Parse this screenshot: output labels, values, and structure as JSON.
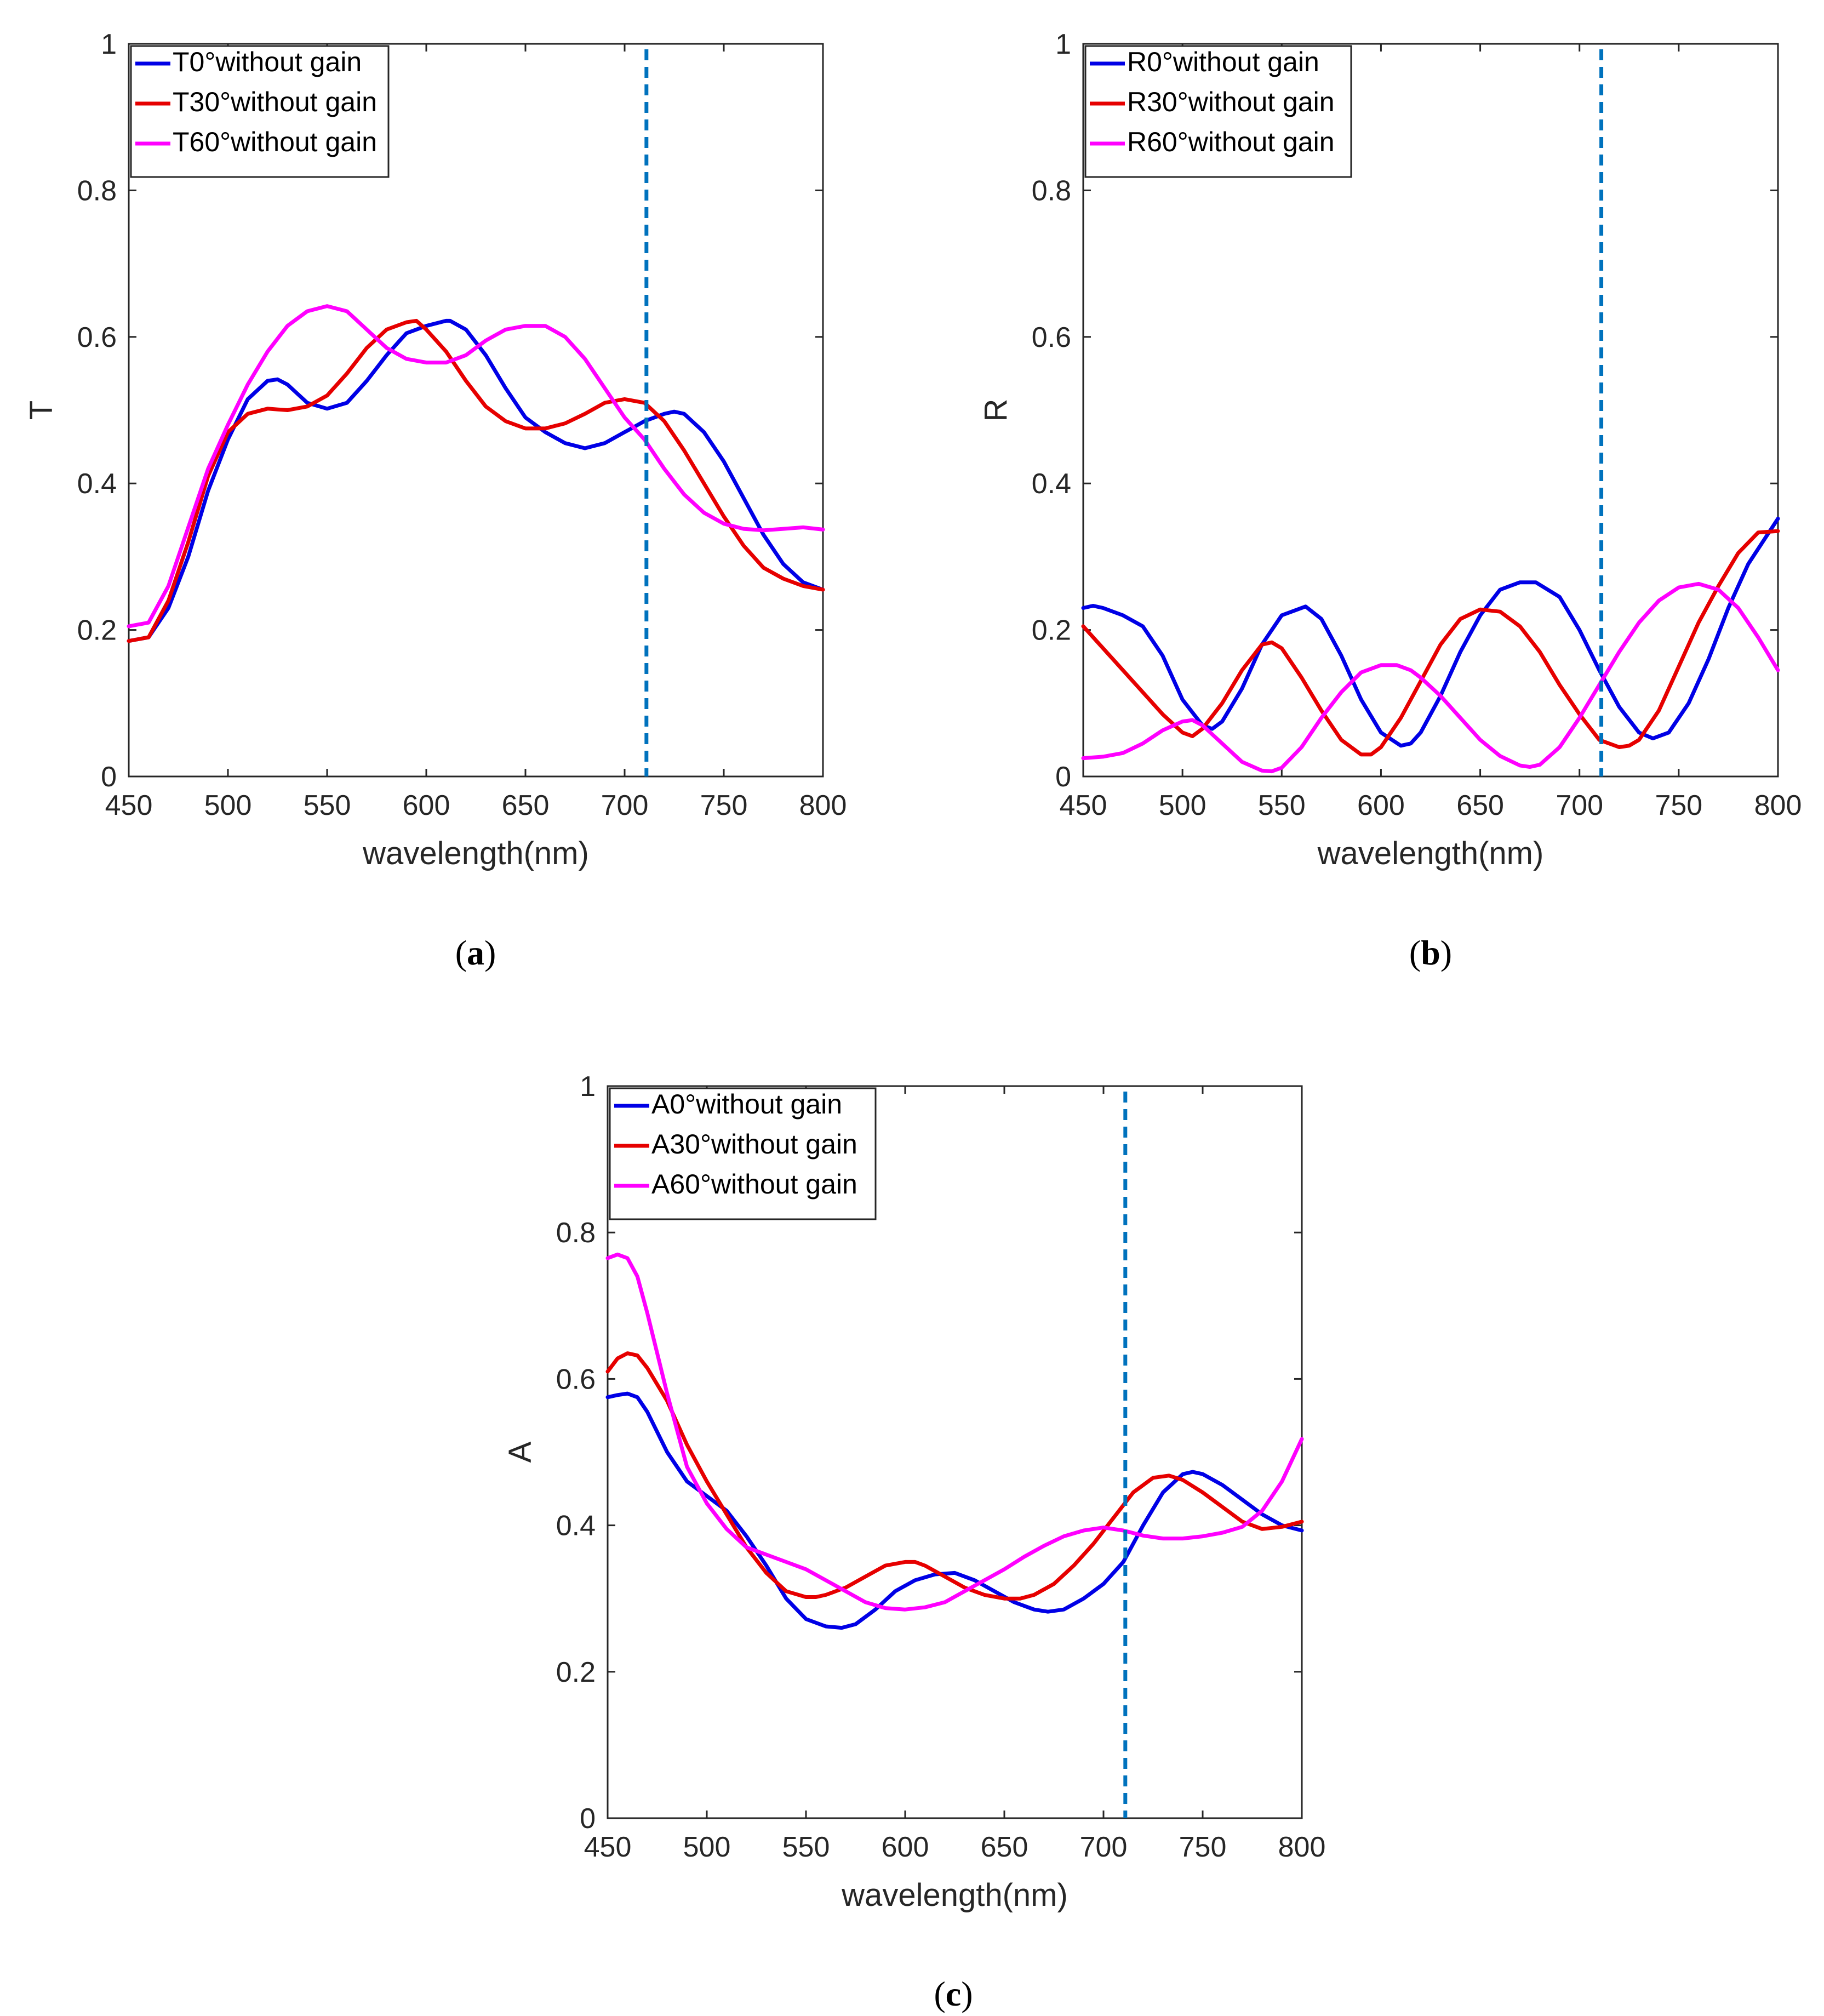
{
  "chart_data": [
    {
      "type": "line",
      "id": "a",
      "panel_label": "a",
      "xlabel": "wavelength(nm)",
      "ylabel": "T",
      "xlim": [
        450,
        800
      ],
      "ylim": [
        0,
        1
      ],
      "xticks": [
        450,
        500,
        550,
        600,
        650,
        700,
        750,
        800
      ],
      "yticks": [
        0,
        0.2,
        0.4,
        0.6,
        0.8,
        1
      ],
      "ytick_labels": [
        "0",
        "0.2",
        "0.4",
        "0.6",
        "0.8",
        "1"
      ],
      "legend_location": "top-left",
      "dashed_line_x": 711,
      "series": [
        {
          "name": "T0°without gain",
          "color": "#0000e6",
          "x": [
            450,
            460,
            470,
            480,
            490,
            500,
            510,
            520,
            525,
            530,
            540,
            550,
            560,
            570,
            580,
            590,
            600,
            610,
            612,
            620,
            630,
            640,
            650,
            660,
            670,
            680,
            690,
            700,
            710,
            720,
            725,
            730,
            740,
            750,
            760,
            770,
            780,
            790,
            800
          ],
          "y": [
            0.185,
            0.19,
            0.23,
            0.3,
            0.39,
            0.46,
            0.515,
            0.54,
            0.542,
            0.535,
            0.51,
            0.502,
            0.51,
            0.54,
            0.575,
            0.605,
            0.615,
            0.622,
            0.622,
            0.61,
            0.575,
            0.53,
            0.49,
            0.47,
            0.455,
            0.448,
            0.455,
            0.47,
            0.485,
            0.495,
            0.498,
            0.495,
            0.47,
            0.43,
            0.38,
            0.33,
            0.29,
            0.265,
            0.255
          ]
        },
        {
          "name": "T30°without gain",
          "color": "#e60000",
          "x": [
            450,
            460,
            470,
            480,
            490,
            500,
            510,
            520,
            530,
            540,
            550,
            560,
            570,
            580,
            590,
            595,
            600,
            610,
            620,
            630,
            640,
            650,
            660,
            670,
            680,
            690,
            700,
            710,
            720,
            730,
            740,
            750,
            760,
            770,
            780,
            790,
            800
          ],
          "y": [
            0.185,
            0.19,
            0.24,
            0.32,
            0.41,
            0.47,
            0.495,
            0.502,
            0.5,
            0.505,
            0.52,
            0.55,
            0.585,
            0.61,
            0.62,
            0.622,
            0.61,
            0.58,
            0.54,
            0.505,
            0.485,
            0.475,
            0.475,
            0.482,
            0.495,
            0.51,
            0.515,
            0.51,
            0.485,
            0.445,
            0.4,
            0.355,
            0.315,
            0.285,
            0.27,
            0.26,
            0.255
          ]
        },
        {
          "name": "T60°without gain",
          "color": "#ff00ff",
          "x": [
            450,
            460,
            470,
            480,
            490,
            500,
            510,
            520,
            530,
            540,
            550,
            560,
            570,
            580,
            590,
            600,
            610,
            620,
            630,
            640,
            650,
            660,
            670,
            680,
            690,
            700,
            710,
            720,
            730,
            740,
            750,
            760,
            770,
            780,
            790,
            800
          ],
          "y": [
            0.205,
            0.21,
            0.26,
            0.34,
            0.42,
            0.48,
            0.535,
            0.58,
            0.615,
            0.635,
            0.642,
            0.635,
            0.61,
            0.585,
            0.57,
            0.565,
            0.565,
            0.575,
            0.595,
            0.61,
            0.615,
            0.615,
            0.6,
            0.57,
            0.53,
            0.49,
            0.46,
            0.42,
            0.385,
            0.36,
            0.345,
            0.338,
            0.336,
            0.338,
            0.34,
            0.337
          ]
        }
      ]
    },
    {
      "type": "line",
      "id": "b",
      "panel_label": "b",
      "xlabel": "wavelength(nm)",
      "ylabel": "R",
      "xlim": [
        450,
        800
      ],
      "ylim": [
        0,
        1
      ],
      "xticks": [
        450,
        500,
        550,
        600,
        650,
        700,
        750,
        800
      ],
      "yticks": [
        0,
        0.2,
        0.4,
        0.6,
        0.8,
        1
      ],
      "ytick_labels": [
        "0",
        "0.2",
        "0.4",
        "0.6",
        "0.8",
        "1"
      ],
      "legend_location": "top-left",
      "dashed_line_x": 711,
      "series": [
        {
          "name": "R0°without gain",
          "color": "#0000e6",
          "x": [
            450,
            455,
            460,
            470,
            480,
            490,
            500,
            510,
            515,
            520,
            530,
            540,
            550,
            562,
            570,
            580,
            590,
            600,
            610,
            615,
            620,
            630,
            640,
            650,
            660,
            670,
            678,
            690,
            700,
            710,
            720,
            730,
            737,
            745,
            755,
            765,
            775,
            785,
            800
          ],
          "y": [
            0.23,
            0.233,
            0.23,
            0.22,
            0.205,
            0.165,
            0.105,
            0.07,
            0.065,
            0.075,
            0.12,
            0.18,
            0.22,
            0.232,
            0.215,
            0.165,
            0.105,
            0.06,
            0.042,
            0.045,
            0.06,
            0.11,
            0.17,
            0.22,
            0.255,
            0.265,
            0.265,
            0.245,
            0.2,
            0.145,
            0.095,
            0.06,
            0.052,
            0.06,
            0.1,
            0.16,
            0.23,
            0.29,
            0.352
          ]
        },
        {
          "name": "R30°without gain",
          "color": "#e60000",
          "x": [
            450,
            460,
            470,
            480,
            490,
            500,
            505,
            510,
            520,
            530,
            540,
            545,
            550,
            560,
            570,
            580,
            590,
            595,
            600,
            610,
            620,
            630,
            640,
            650,
            660,
            670,
            680,
            690,
            700,
            710,
            720,
            725,
            730,
            740,
            750,
            760,
            770,
            780,
            790,
            800
          ],
          "y": [
            0.205,
            0.175,
            0.145,
            0.115,
            0.085,
            0.06,
            0.055,
            0.065,
            0.1,
            0.145,
            0.18,
            0.183,
            0.175,
            0.135,
            0.09,
            0.05,
            0.03,
            0.03,
            0.04,
            0.08,
            0.13,
            0.18,
            0.215,
            0.228,
            0.225,
            0.205,
            0.17,
            0.125,
            0.085,
            0.05,
            0.04,
            0.042,
            0.05,
            0.09,
            0.15,
            0.21,
            0.26,
            0.305,
            0.333,
            0.335
          ]
        },
        {
          "name": "R60°without gain",
          "color": "#ff00ff",
          "x": [
            450,
            460,
            470,
            480,
            490,
            500,
            505,
            510,
            520,
            530,
            540,
            545,
            550,
            560,
            570,
            580,
            590,
            600,
            608,
            615,
            620,
            630,
            640,
            650,
            660,
            670,
            675,
            680,
            690,
            700,
            710,
            720,
            730,
            740,
            750,
            760,
            770,
            780,
            790,
            800
          ],
          "y": [
            0.025,
            0.027,
            0.032,
            0.045,
            0.063,
            0.075,
            0.077,
            0.07,
            0.045,
            0.02,
            0.008,
            0.007,
            0.012,
            0.04,
            0.08,
            0.115,
            0.142,
            0.152,
            0.152,
            0.145,
            0.135,
            0.11,
            0.08,
            0.05,
            0.028,
            0.015,
            0.013,
            0.016,
            0.04,
            0.08,
            0.125,
            0.17,
            0.21,
            0.24,
            0.258,
            0.263,
            0.255,
            0.23,
            0.19,
            0.145
          ]
        }
      ]
    },
    {
      "type": "line",
      "id": "c",
      "panel_label": "c",
      "xlabel": "wavelength(nm)",
      "ylabel": "A",
      "xlim": [
        450,
        800
      ],
      "ylim": [
        0,
        1
      ],
      "xticks": [
        450,
        500,
        550,
        600,
        650,
        700,
        750,
        800
      ],
      "yticks": [
        0,
        0.2,
        0.4,
        0.6,
        0.8,
        1
      ],
      "ytick_labels": [
        "0",
        "0.2",
        "0.4",
        "0.6",
        "0.8",
        "1"
      ],
      "legend_location": "top-left",
      "dashed_line_x": 711,
      "series": [
        {
          "name": "A0°without gain",
          "color": "#0000e6",
          "x": [
            450,
            455,
            460,
            465,
            470,
            480,
            490,
            500,
            510,
            520,
            530,
            540,
            550,
            560,
            568,
            575,
            585,
            595,
            605,
            615,
            625,
            635,
            645,
            655,
            665,
            672,
            680,
            690,
            700,
            710,
            720,
            730,
            740,
            745,
            750,
            760,
            770,
            780,
            790,
            800
          ],
          "y": [
            0.575,
            0.578,
            0.58,
            0.575,
            0.555,
            0.5,
            0.46,
            0.44,
            0.42,
            0.385,
            0.345,
            0.3,
            0.272,
            0.262,
            0.26,
            0.265,
            0.285,
            0.31,
            0.325,
            0.333,
            0.335,
            0.325,
            0.31,
            0.295,
            0.285,
            0.282,
            0.285,
            0.3,
            0.32,
            0.35,
            0.4,
            0.445,
            0.47,
            0.473,
            0.47,
            0.455,
            0.435,
            0.415,
            0.4,
            0.393
          ]
        },
        {
          "name": "A30°without gain",
          "color": "#e60000",
          "x": [
            450,
            455,
            460,
            465,
            470,
            480,
            490,
            500,
            510,
            520,
            530,
            540,
            550,
            555,
            560,
            570,
            580,
            590,
            600,
            605,
            610,
            620,
            630,
            640,
            650,
            658,
            665,
            675,
            685,
            695,
            705,
            715,
            725,
            733,
            740,
            750,
            760,
            770,
            780,
            790,
            800
          ],
          "y": [
            0.61,
            0.628,
            0.635,
            0.632,
            0.615,
            0.57,
            0.51,
            0.46,
            0.415,
            0.37,
            0.335,
            0.31,
            0.302,
            0.302,
            0.305,
            0.315,
            0.33,
            0.345,
            0.35,
            0.35,
            0.345,
            0.33,
            0.315,
            0.305,
            0.3,
            0.3,
            0.305,
            0.32,
            0.345,
            0.375,
            0.41,
            0.445,
            0.465,
            0.468,
            0.462,
            0.445,
            0.425,
            0.405,
            0.395,
            0.398,
            0.405
          ]
        },
        {
          "name": "A60°without gain",
          "color": "#ff00ff",
          "x": [
            450,
            455,
            460,
            465,
            470,
            480,
            490,
            500,
            510,
            520,
            530,
            540,
            550,
            560,
            570,
            580,
            590,
            600,
            610,
            620,
            630,
            640,
            650,
            660,
            670,
            680,
            690,
            700,
            710,
            720,
            730,
            740,
            750,
            760,
            770,
            780,
            790,
            800
          ],
          "y": [
            0.765,
            0.77,
            0.765,
            0.74,
            0.69,
            0.58,
            0.48,
            0.43,
            0.395,
            0.37,
            0.36,
            0.35,
            0.34,
            0.325,
            0.31,
            0.295,
            0.287,
            0.285,
            0.288,
            0.295,
            0.31,
            0.325,
            0.34,
            0.357,
            0.372,
            0.385,
            0.393,
            0.397,
            0.393,
            0.386,
            0.382,
            0.382,
            0.385,
            0.39,
            0.398,
            0.42,
            0.46,
            0.518
          ]
        }
      ]
    }
  ]
}
